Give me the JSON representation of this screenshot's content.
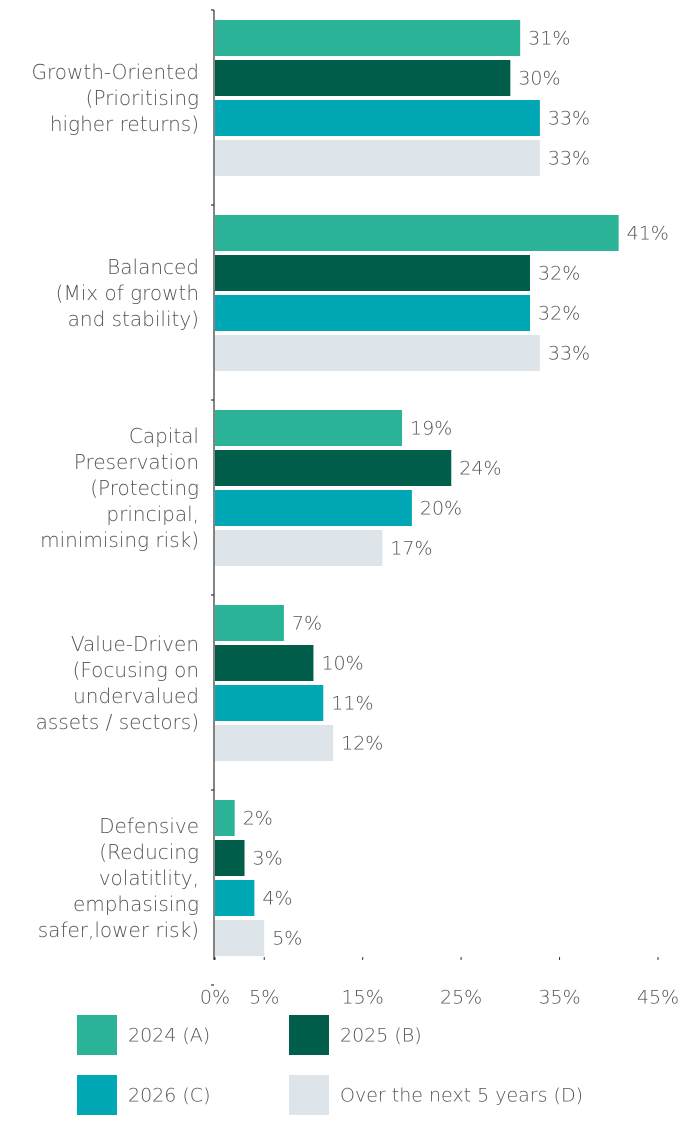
{
  "chart_data": {
    "type": "bar",
    "orientation": "horizontal",
    "categories": [
      "Growth-Oriented\n(Prioritising\nhigher returns)",
      "Balanced\n(Mix of growth\nand stability)",
      "Capital\nPreservation\n(Protecting\nprincipal,\nminimising risk)",
      "Value-Driven\n(Focusing on\nundervalued\nassets / sectors)",
      "Defensive\n(Reducing\nvolatitlity,\nemphasising\nsafer,lower risk)"
    ],
    "series": [
      {
        "name": "2024 (A)",
        "color": "#2bb397",
        "values": [
          31,
          41,
          19,
          7,
          2
        ],
        "value_labels": [
          "31%",
          "41%",
          "19%",
          "7%",
          "2%"
        ]
      },
      {
        "name": "2025 (B)",
        "color": "#005e4b",
        "values": [
          30,
          32,
          24,
          10,
          3
        ],
        "value_labels": [
          "30%",
          "32%",
          "24%",
          "10%",
          "3%"
        ]
      },
      {
        "name": "2026 (C)",
        "color": "#00a7b5",
        "values": [
          33,
          32,
          20,
          11,
          4
        ],
        "value_labels": [
          "33%",
          "32%",
          "20%",
          "11%",
          "4%"
        ]
      },
      {
        "name": "Over the next 5 years (D)",
        "color": "#dde5eb",
        "values": [
          33,
          33,
          17,
          12,
          5
        ],
        "value_labels": [
          "33%",
          "33%",
          "17%",
          "12%",
          "5%"
        ]
      }
    ],
    "xlim": [
      0,
      45
    ],
    "xticks": [
      {
        "value": 0,
        "label": "0%"
      },
      {
        "value": 5,
        "label": "5%"
      },
      {
        "value": 15,
        "label": "15%"
      },
      {
        "value": 25,
        "label": "25%"
      },
      {
        "value": 35,
        "label": "35%"
      },
      {
        "value": 45,
        "label": "45%"
      }
    ],
    "grid": false
  }
}
